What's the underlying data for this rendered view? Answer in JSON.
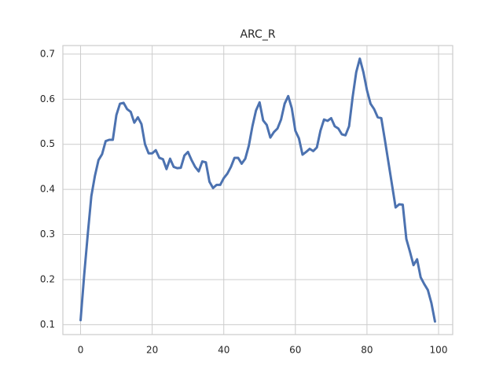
{
  "chart_data": {
    "type": "line",
    "title": "ARC_R",
    "x": [
      0,
      1,
      2,
      3,
      4,
      5,
      6,
      7,
      8,
      9,
      10,
      11,
      12,
      13,
      14,
      15,
      16,
      17,
      18,
      19,
      20,
      21,
      22,
      23,
      24,
      25,
      26,
      27,
      28,
      29,
      30,
      31,
      32,
      33,
      34,
      35,
      36,
      37,
      38,
      39,
      40,
      41,
      42,
      43,
      44,
      45,
      46,
      47,
      48,
      49,
      50,
      51,
      52,
      53,
      54,
      55,
      56,
      57,
      58,
      59,
      60,
      61,
      62,
      63,
      64,
      65,
      66,
      67,
      68,
      69,
      70,
      71,
      72,
      73,
      74,
      75,
      76,
      77,
      78,
      79,
      80,
      81,
      82,
      83,
      84,
      85,
      86,
      87,
      88,
      89,
      90,
      91,
      92,
      93,
      94,
      95,
      96,
      97,
      98,
      99
    ],
    "values": [
      0.11,
      0.21,
      0.3,
      0.385,
      0.43,
      0.465,
      0.478,
      0.507,
      0.51,
      0.51,
      0.565,
      0.59,
      0.592,
      0.578,
      0.572,
      0.548,
      0.56,
      0.545,
      0.5,
      0.48,
      0.48,
      0.487,
      0.47,
      0.467,
      0.445,
      0.468,
      0.45,
      0.447,
      0.448,
      0.475,
      0.483,
      0.465,
      0.45,
      0.44,
      0.462,
      0.46,
      0.417,
      0.403,
      0.41,
      0.41,
      0.425,
      0.435,
      0.45,
      0.47,
      0.47,
      0.457,
      0.468,
      0.497,
      0.54,
      0.575,
      0.593,
      0.553,
      0.543,
      0.515,
      0.527,
      0.535,
      0.555,
      0.59,
      0.607,
      0.58,
      0.53,
      0.513,
      0.477,
      0.483,
      0.49,
      0.485,
      0.493,
      0.53,
      0.555,
      0.552,
      0.558,
      0.54,
      0.535,
      0.522,
      0.52,
      0.54,
      0.605,
      0.66,
      0.69,
      0.66,
      0.62,
      0.59,
      0.578,
      0.56,
      0.558,
      0.51,
      0.46,
      0.41,
      0.36,
      0.367,
      0.366,
      0.29,
      0.262,
      0.232,
      0.245,
      0.205,
      0.19,
      0.177,
      0.148,
      0.107
    ],
    "color": "#4c72b0",
    "xlim": [
      -4.95,
      103.95
    ],
    "ylim": [
      0.078,
      0.719
    ],
    "xticks": [
      0,
      20,
      40,
      60,
      80,
      100
    ],
    "yticks": [
      0.1,
      0.2,
      0.3,
      0.4,
      0.5,
      0.6,
      0.7
    ],
    "grid": true
  }
}
